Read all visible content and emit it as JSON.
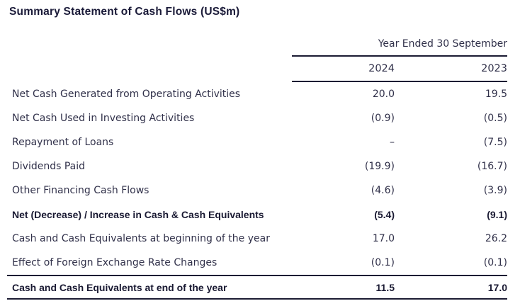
{
  "title": "Summary Statement of Cash Flows (US$m)",
  "table": {
    "period_header": "Year Ended 30 September",
    "columns": [
      "2024",
      "2023"
    ],
    "rows": [
      {
        "label": "Net Cash Generated from Operating Activities",
        "y2024": "20.0",
        "y2023": "19.5",
        "bold": false
      },
      {
        "label": "Net Cash Used in Investing Activities",
        "y2024": "(0.9)",
        "y2023": "(0.5)",
        "bold": false
      },
      {
        "label": "Repayment of Loans",
        "y2024": "–",
        "y2023": "(7.5)",
        "bold": false
      },
      {
        "label": "Dividends Paid",
        "y2024": "(19.9)",
        "y2023": "(16.7)",
        "bold": false
      },
      {
        "label": "Other Financing Cash Flows",
        "y2024": "(4.6)",
        "y2023": "(3.9)",
        "bold": false
      },
      {
        "label": "Net (Decrease) / Increase in Cash & Cash Equivalents",
        "y2024": "(5.4)",
        "y2023": "(9.1)",
        "bold": true
      },
      {
        "label": "Cash and Cash Equivalents at beginning of the year",
        "y2024": "17.0",
        "y2023": "26.2",
        "bold": false
      },
      {
        "label": "Effect of Foreign Exchange Rate Changes",
        "y2024": "(0.1)",
        "y2023": "(0.1)",
        "bold": false
      }
    ],
    "total_row": {
      "label": "Cash and Cash Equivalents at end of the year",
      "y2024": "11.5",
      "y2023": "17.0"
    }
  },
  "colors": {
    "title_text": "#1a1a38",
    "body_text": "#31314a",
    "rule": "#1b1b33",
    "background": "#ffffff"
  }
}
